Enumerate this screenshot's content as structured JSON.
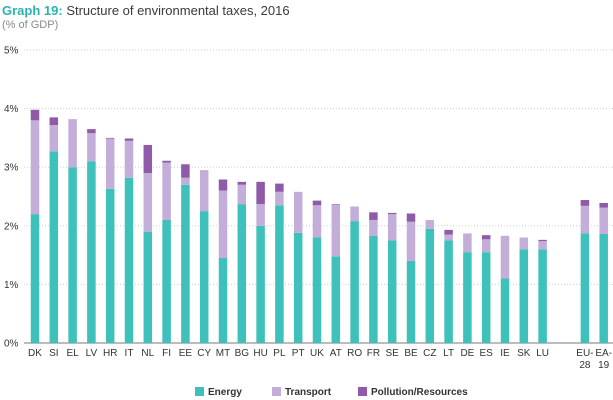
{
  "chart_data": {
    "type": "bar",
    "stacked": true,
    "title_number": "Graph 19:",
    "title": "Structure of environmental taxes, 2016",
    "subtitle": "(% of GDP)",
    "categories": [
      "DK",
      "SI",
      "EL",
      "LV",
      "HR",
      "IT",
      "NL",
      "FI",
      "EE",
      "CY",
      "MT",
      "BG",
      "HU",
      "PL",
      "PT",
      "UK",
      "AT",
      "RO",
      "FR",
      "SE",
      "BE",
      "CZ",
      "LT",
      "DE",
      "ES",
      "IE",
      "SK",
      "LU",
      "EU-28",
      "EA-19"
    ],
    "category_lines": [
      [
        "DK"
      ],
      [
        "SI"
      ],
      [
        "EL"
      ],
      [
        "LV"
      ],
      [
        "HR"
      ],
      [
        "IT"
      ],
      [
        "NL"
      ],
      [
        "FI"
      ],
      [
        "EE"
      ],
      [
        "CY"
      ],
      [
        "MT"
      ],
      [
        "BG"
      ],
      [
        "HU"
      ],
      [
        "PL"
      ],
      [
        "PT"
      ],
      [
        "UK"
      ],
      [
        "AT"
      ],
      [
        "RO"
      ],
      [
        "FR"
      ],
      [
        "SE"
      ],
      [
        "BE"
      ],
      [
        "CZ"
      ],
      [
        "LT"
      ],
      [
        "DE"
      ],
      [
        "ES"
      ],
      [
        "IE"
      ],
      [
        "SK"
      ],
      [
        "LU"
      ],
      [
        "EU-",
        "28"
      ],
      [
        "EA-",
        "19"
      ]
    ],
    "series": [
      {
        "name": "Energy",
        "color": "#3ec1bb",
        "values": [
          2.2,
          3.27,
          3.0,
          3.1,
          2.63,
          2.82,
          1.9,
          2.1,
          2.7,
          2.25,
          1.45,
          2.37,
          2.0,
          2.35,
          1.88,
          1.8,
          1.48,
          2.08,
          1.83,
          1.75,
          1.4,
          1.95,
          1.75,
          1.55,
          1.55,
          1.1,
          1.6,
          1.6,
          1.87,
          1.86
        ]
      },
      {
        "name": "Transport",
        "color": "#c2aed8",
        "values": [
          1.6,
          0.45,
          0.82,
          0.48,
          0.86,
          0.63,
          1.0,
          0.98,
          0.12,
          0.7,
          1.15,
          0.33,
          0.37,
          0.23,
          0.7,
          0.55,
          0.88,
          0.25,
          0.27,
          0.45,
          0.67,
          0.15,
          0.1,
          0.32,
          0.22,
          0.73,
          0.2,
          0.14,
          0.47,
          0.45
        ]
      },
      {
        "name": "Pollution/Resources",
        "color": "#8f5aa8",
        "values": [
          0.18,
          0.13,
          0.0,
          0.07,
          0.01,
          0.04,
          0.48,
          0.03,
          0.23,
          0.0,
          0.19,
          0.05,
          0.38,
          0.14,
          0.0,
          0.08,
          0.01,
          0.0,
          0.13,
          0.02,
          0.14,
          0.0,
          0.08,
          0.0,
          0.07,
          0.0,
          0.0,
          0.02,
          0.1,
          0.08
        ]
      }
    ],
    "y_ticks": [
      "0%",
      "1%",
      "2%",
      "3%",
      "4%",
      "5%"
    ],
    "ylim": [
      0,
      5
    ],
    "grid": true,
    "legend_position": "bottom"
  }
}
